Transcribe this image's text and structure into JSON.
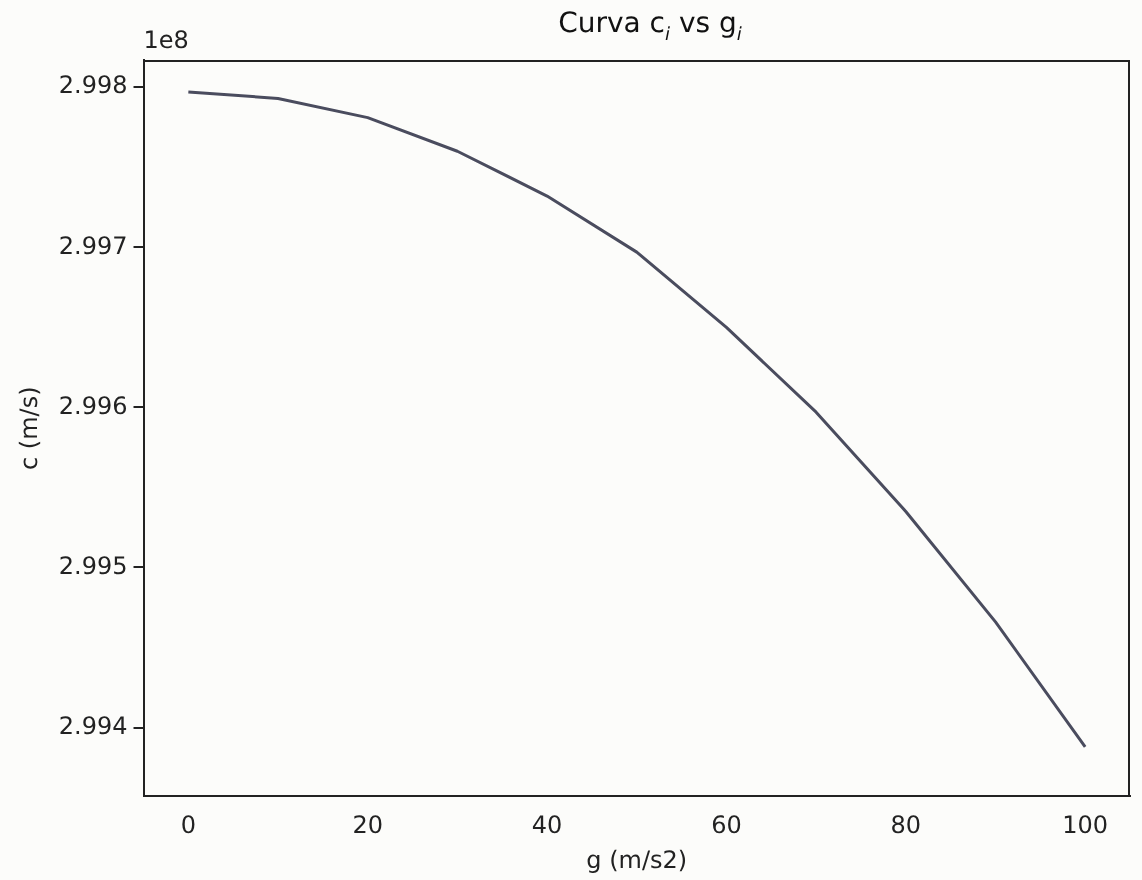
{
  "chart_data": {
    "type": "line",
    "title": "Curva c$_{i}$ vs g$_{i}$",
    "xlabel": "g (m/s2)",
    "ylabel": "c (m/s)",
    "annotations": [
      "1e8"
    ],
    "series": [
      {
        "color": "#4a4c5e",
        "x": [
          0,
          10,
          20,
          30,
          40,
          50,
          60,
          70,
          80,
          90,
          100
        ],
        "values": [
          2.99797,
          2.99793,
          2.99781,
          2.9976,
          2.99732,
          2.99697,
          2.9965,
          2.99597,
          2.99535,
          2.99466,
          2.99388
        ]
      }
    ],
    "xlim": [
      -5,
      105
    ],
    "xticks": [
      0,
      20,
      40,
      60,
      80,
      100
    ],
    "ylim": [
      2.99357,
      2.99817
    ],
    "yticks": [
      2.994,
      2.995,
      2.996,
      2.997,
      2.998
    ],
    "grid": false,
    "legend": false,
    "marker": "none",
    "line_style": "solid"
  }
}
